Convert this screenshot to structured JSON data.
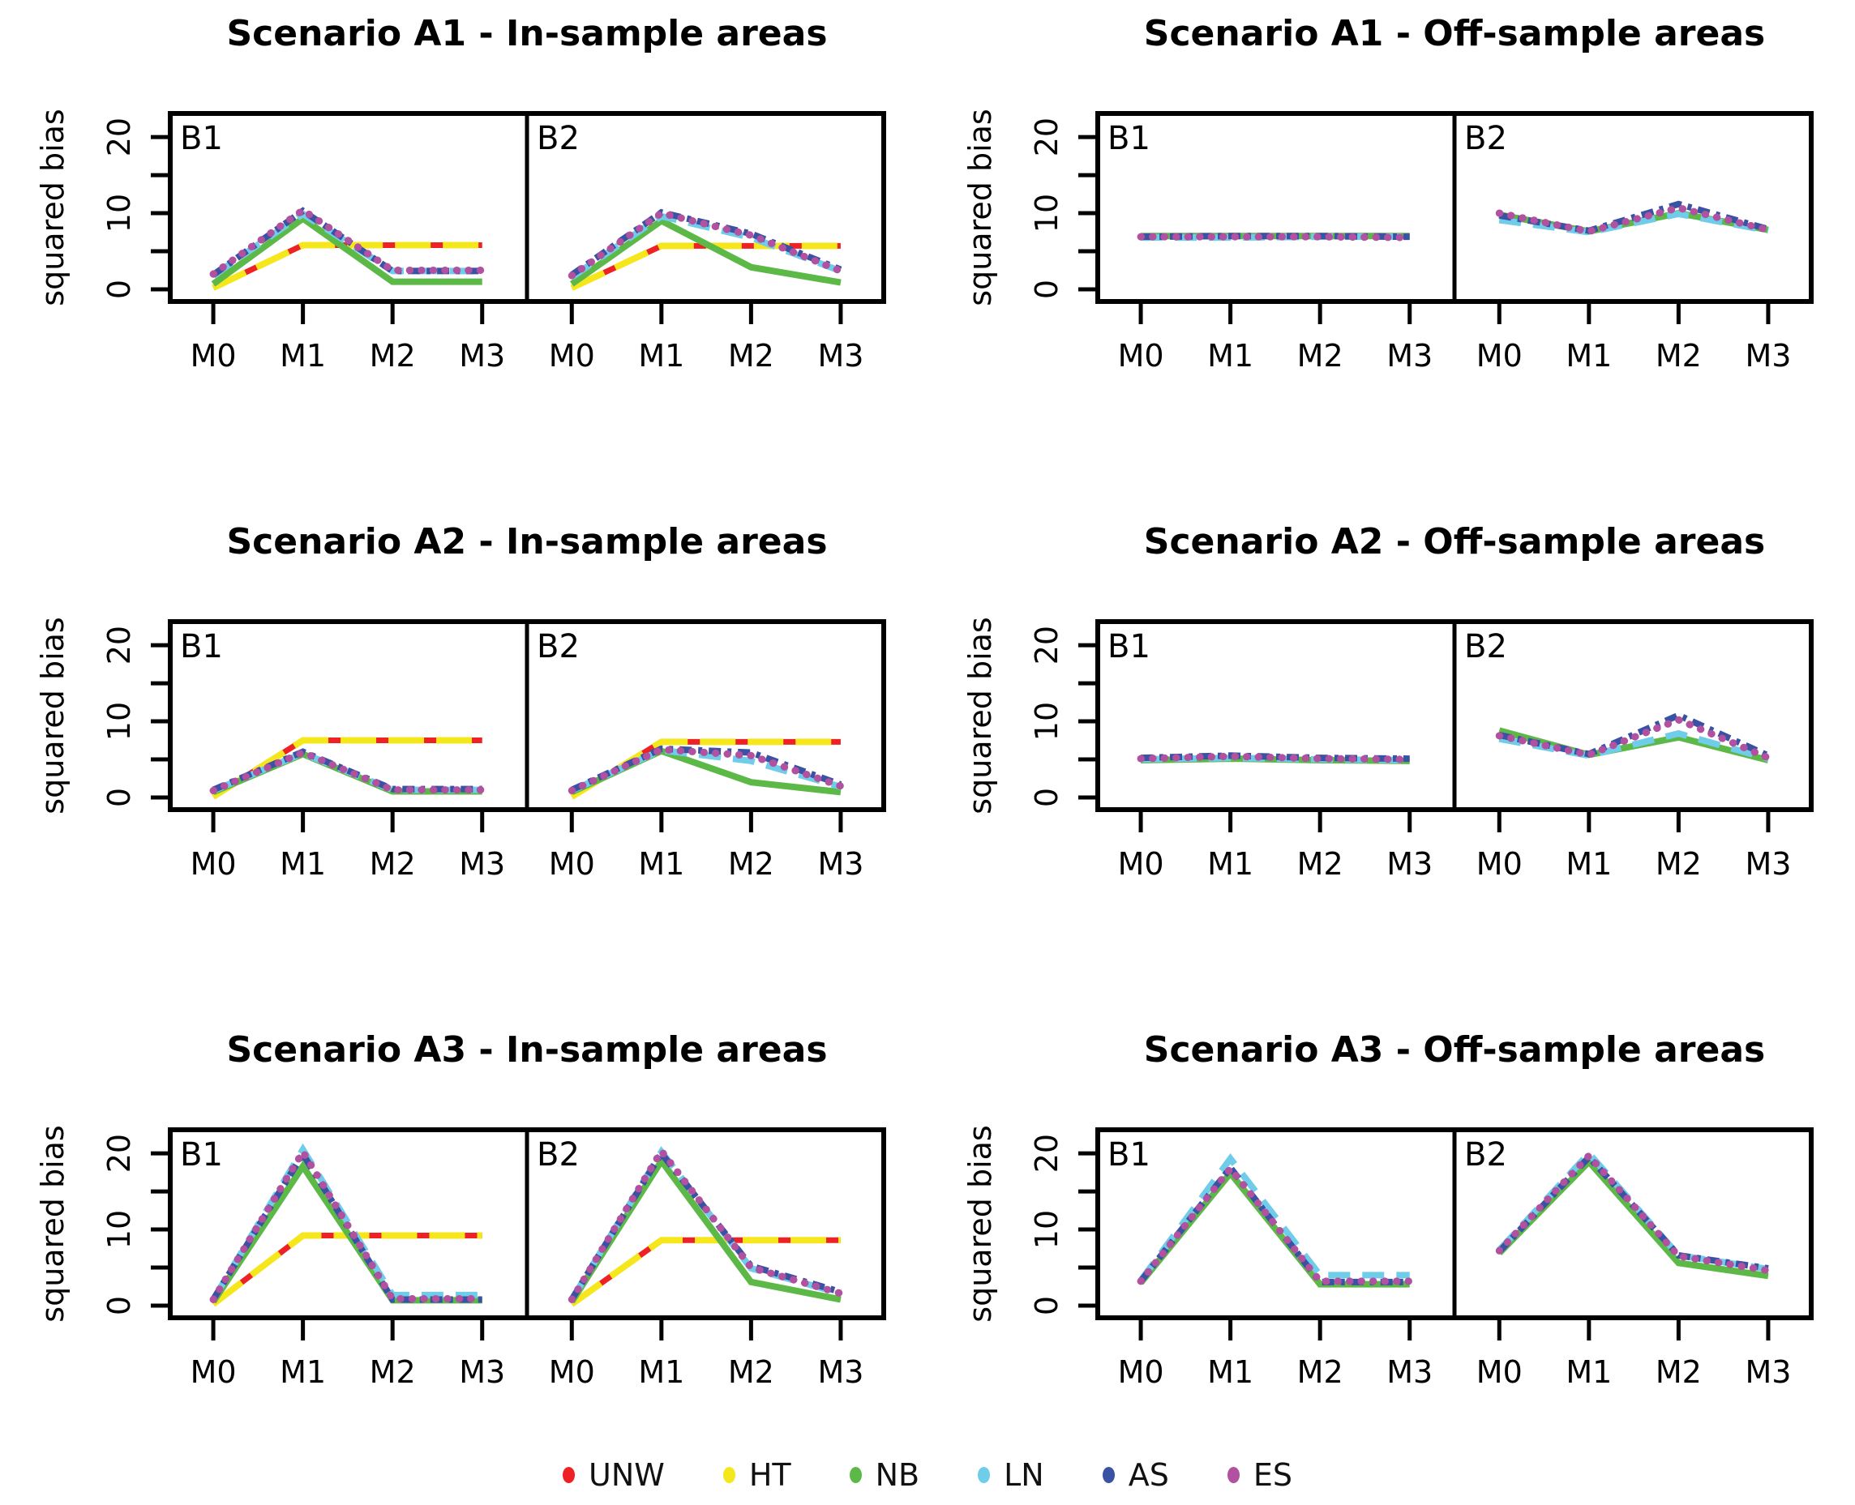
{
  "figure": {
    "background": "#ffffff"
  },
  "legend": {
    "items": [
      {
        "label": "UNW",
        "color": "#ee2224"
      },
      {
        "label": "HT",
        "color": "#f5e71c"
      },
      {
        "label": "NB",
        "color": "#5cb947"
      },
      {
        "label": "LN",
        "color": "#6fcde9"
      },
      {
        "label": "AS",
        "color": "#3a52a4"
      },
      {
        "label": "ES",
        "color": "#b1519f"
      }
    ]
  },
  "series_styles": {
    "UNW": {
      "color": "#ee2224",
      "width": 7,
      "dash": null,
      "cap": "butt"
    },
    "HT": {
      "color": "#f5e71c",
      "width": 8,
      "dash": "44 15",
      "cap": "butt"
    },
    "NB": {
      "color": "#5cb947",
      "width": 8,
      "dash": null,
      "cap": "butt"
    },
    "LN": {
      "color": "#6fcde9",
      "width": 8,
      "dash": "27 15",
      "cap": "butt"
    },
    "AS": {
      "color": "#3a52a4",
      "width": 8,
      "dash": "15 8 5 8",
      "cap": "butt"
    },
    "ES": {
      "color": "#b1519f",
      "width": 9,
      "dash": "0.5 14",
      "cap": "round"
    }
  },
  "chart_data": [
    {
      "type": "line",
      "title": "Scenario A1 - In-sample areas",
      "ylabel": "squared bias",
      "x_categories": [
        "M0",
        "M1",
        "M2",
        "M3"
      ],
      "ylim": [
        0,
        20
      ],
      "yticks": [
        0,
        5,
        10,
        15,
        20
      ],
      "ytick_labeled": [
        0,
        10,
        20
      ],
      "grid": false,
      "subpanels": [
        {
          "label": "B1",
          "series": [
            {
              "name": "UNW",
              "values": [
                0.2,
                5.8,
                5.8,
                5.8
              ]
            },
            {
              "name": "HT",
              "values": [
                0.2,
                5.8,
                5.8,
                5.8
              ]
            },
            {
              "name": "NB",
              "values": [
                0.7,
                9.3,
                1.0,
                1.0
              ]
            },
            {
              "name": "LN",
              "values": [
                1.8,
                9.9,
                2.4,
                2.4
              ]
            },
            {
              "name": "AS",
              "values": [
                1.9,
                10.3,
                2.4,
                2.4
              ]
            },
            {
              "name": "ES",
              "values": [
                2.0,
                10.4,
                2.5,
                2.5
              ]
            }
          ]
        },
        {
          "label": "B2",
          "series": [
            {
              "name": "UNW",
              "values": [
                0.2,
                5.7,
                5.7,
                5.7
              ]
            },
            {
              "name": "HT",
              "values": [
                0.2,
                5.7,
                5.7,
                5.7
              ]
            },
            {
              "name": "NB",
              "values": [
                0.7,
                9.0,
                2.9,
                0.9
              ]
            },
            {
              "name": "LN",
              "values": [
                1.6,
                9.6,
                6.8,
                2.4
              ]
            },
            {
              "name": "AS",
              "values": [
                1.9,
                10.1,
                7.3,
                2.6
              ]
            },
            {
              "name": "ES",
              "values": [
                1.8,
                10.0,
                7.1,
                2.4
              ]
            }
          ]
        }
      ]
    },
    {
      "type": "line",
      "title": "Scenario A1 - Off-sample areas",
      "ylabel": "squared bias",
      "x_categories": [
        "M0",
        "M1",
        "M2",
        "M3"
      ],
      "ylim": [
        0,
        20
      ],
      "yticks": [
        0,
        5,
        10,
        15,
        20
      ],
      "ytick_labeled": [
        0,
        10,
        20
      ],
      "grid": false,
      "subpanels": [
        {
          "label": "B1",
          "series": [
            {
              "name": "NB",
              "values": [
                7.0,
                7.0,
                7.0,
                7.0
              ]
            },
            {
              "name": "LN",
              "values": [
                6.8,
                6.8,
                6.9,
                6.9
              ]
            },
            {
              "name": "AS",
              "values": [
                6.9,
                7.0,
                7.0,
                6.9
              ]
            },
            {
              "name": "ES",
              "values": [
                6.9,
                6.9,
                6.9,
                6.8
              ]
            }
          ]
        },
        {
          "label": "B2",
          "series": [
            {
              "name": "NB",
              "values": [
                9.8,
                7.6,
                10.0,
                7.8
              ]
            },
            {
              "name": "LN",
              "values": [
                9.1,
                7.5,
                9.9,
                7.7
              ]
            },
            {
              "name": "AS",
              "values": [
                9.7,
                7.7,
                11.2,
                7.9
              ]
            },
            {
              "name": "ES",
              "values": [
                10.0,
                7.6,
                10.7,
                7.8
              ]
            }
          ]
        }
      ]
    },
    {
      "type": "line",
      "title": "Scenario A2 - In-sample areas",
      "ylabel": "squared bias",
      "x_categories": [
        "M0",
        "M1",
        "M2",
        "M3"
      ],
      "ylim": [
        0,
        20
      ],
      "yticks": [
        0,
        5,
        10,
        15,
        20
      ],
      "ytick_labeled": [
        0,
        10,
        20
      ],
      "grid": false,
      "subpanels": [
        {
          "label": "B1",
          "series": [
            {
              "name": "UNW",
              "values": [
                0.1,
                7.5,
                7.5,
                7.5
              ]
            },
            {
              "name": "HT",
              "values": [
                0.1,
                7.5,
                7.5,
                7.5
              ]
            },
            {
              "name": "NB",
              "values": [
                0.7,
                5.7,
                0.8,
                0.8
              ]
            },
            {
              "name": "LN",
              "values": [
                0.9,
                5.8,
                1.0,
                1.0
              ]
            },
            {
              "name": "AS",
              "values": [
                1.0,
                6.0,
                1.1,
                1.1
              ]
            },
            {
              "name": "ES",
              "values": [
                0.9,
                5.9,
                1.0,
                1.0
              ]
            }
          ]
        },
        {
          "label": "B2",
          "series": [
            {
              "name": "UNW",
              "values": [
                0.1,
                7.3,
                7.3,
                7.3
              ]
            },
            {
              "name": "HT",
              "values": [
                0.1,
                7.3,
                7.3,
                7.3
              ]
            },
            {
              "name": "NB",
              "values": [
                0.7,
                6.1,
                2.0,
                0.7
              ]
            },
            {
              "name": "LN",
              "values": [
                0.9,
                6.2,
                4.8,
                1.4
              ]
            },
            {
              "name": "AS",
              "values": [
                1.0,
                6.4,
                5.9,
                1.7
              ]
            },
            {
              "name": "ES",
              "values": [
                0.9,
                6.3,
                5.5,
                1.5
              ]
            }
          ]
        }
      ]
    },
    {
      "type": "line",
      "title": "Scenario A2 - Off-sample areas",
      "ylabel": "squared bias",
      "x_categories": [
        "M0",
        "M1",
        "M2",
        "M3"
      ],
      "ylim": [
        0,
        20
      ],
      "yticks": [
        0,
        5,
        10,
        15,
        20
      ],
      "ytick_labeled": [
        0,
        10,
        20
      ],
      "grid": false,
      "subpanels": [
        {
          "label": "B1",
          "series": [
            {
              "name": "NB",
              "values": [
                4.9,
                5.1,
                4.9,
                4.8
              ]
            },
            {
              "name": "LN",
              "values": [
                5.0,
                5.2,
                5.0,
                4.9
              ]
            },
            {
              "name": "AS",
              "values": [
                5.2,
                5.5,
                5.2,
                5.1
              ]
            },
            {
              "name": "ES",
              "values": [
                5.1,
                5.4,
                5.1,
                5.0
              ]
            }
          ]
        },
        {
          "label": "B2",
          "series": [
            {
              "name": "NB",
              "values": [
                8.8,
                5.6,
                7.9,
                4.9
              ]
            },
            {
              "name": "LN",
              "values": [
                7.7,
                5.5,
                8.4,
                5.1
              ]
            },
            {
              "name": "AS",
              "values": [
                8.2,
                5.7,
                10.8,
                5.5
              ]
            },
            {
              "name": "ES",
              "values": [
                8.1,
                5.6,
                10.2,
                5.2
              ]
            }
          ]
        }
      ]
    },
    {
      "type": "line",
      "title": "Scenario A3 - In-sample areas",
      "ylabel": "squared bias",
      "x_categories": [
        "M0",
        "M1",
        "M2",
        "M3"
      ],
      "ylim": [
        0,
        20
      ],
      "yticks": [
        0,
        5,
        10,
        15,
        20
      ],
      "ytick_labeled": [
        0,
        10,
        20
      ],
      "grid": false,
      "subpanels": [
        {
          "label": "B1",
          "series": [
            {
              "name": "UNW",
              "values": [
                0.2,
                9.2,
                9.2,
                9.2
              ]
            },
            {
              "name": "HT",
              "values": [
                0.2,
                9.2,
                9.2,
                9.2
              ]
            },
            {
              "name": "NB",
              "values": [
                0.5,
                18.3,
                0.7,
                0.7
              ]
            },
            {
              "name": "LN",
              "values": [
                0.8,
                20.5,
                1.4,
                1.4
              ]
            },
            {
              "name": "AS",
              "values": [
                0.8,
                19.9,
                0.8,
                0.8
              ]
            },
            {
              "name": "ES",
              "values": [
                0.8,
                20.2,
                0.9,
                0.9
              ]
            }
          ]
        },
        {
          "label": "B2",
          "series": [
            {
              "name": "UNW",
              "values": [
                0.2,
                8.6,
                8.6,
                8.6
              ]
            },
            {
              "name": "HT",
              "values": [
                0.2,
                8.6,
                8.6,
                8.6
              ]
            },
            {
              "name": "NB",
              "values": [
                0.5,
                19.0,
                3.1,
                0.8
              ]
            },
            {
              "name": "LN",
              "values": [
                0.8,
                20.2,
                4.9,
                1.6
              ]
            },
            {
              "name": "AS",
              "values": [
                0.8,
                20.0,
                5.2,
                1.8
              ]
            },
            {
              "name": "ES",
              "values": [
                0.8,
                20.3,
                5.0,
                1.6
              ]
            }
          ]
        }
      ]
    },
    {
      "type": "line",
      "title": "Scenario A3 - Off-sample areas",
      "ylabel": "squared bias",
      "x_categories": [
        "M0",
        "M1",
        "M2",
        "M3"
      ],
      "ylim": [
        0,
        20
      ],
      "yticks": [
        0,
        5,
        10,
        15,
        20
      ],
      "ytick_labeled": [
        0,
        10,
        20
      ],
      "grid": false,
      "subpanels": [
        {
          "label": "B1",
          "series": [
            {
              "name": "NB",
              "values": [
                3.0,
                17.4,
                2.8,
                2.8
              ]
            },
            {
              "name": "LN",
              "values": [
                3.3,
                19.3,
                4.0,
                4.0
              ]
            },
            {
              "name": "AS",
              "values": [
                3.2,
                18.1,
                3.1,
                3.1
              ]
            },
            {
              "name": "ES",
              "values": [
                3.2,
                18.0,
                3.2,
                3.2
              ]
            }
          ]
        },
        {
          "label": "B2",
          "series": [
            {
              "name": "NB",
              "values": [
                6.9,
                18.9,
                5.6,
                3.9
              ]
            },
            {
              "name": "LN",
              "values": [
                7.3,
                20.0,
                6.6,
                4.8
              ]
            },
            {
              "name": "AS",
              "values": [
                7.1,
                19.5,
                6.6,
                4.9
              ]
            },
            {
              "name": "ES",
              "values": [
                7.2,
                19.7,
                6.5,
                4.6
              ]
            }
          ]
        }
      ]
    }
  ]
}
